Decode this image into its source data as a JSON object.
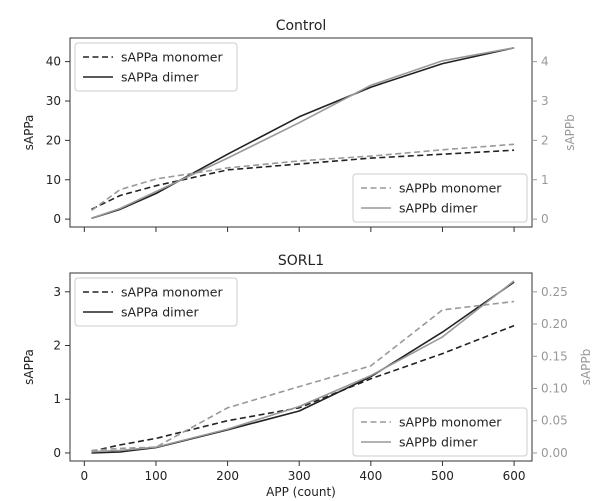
{
  "chart_data": [
    {
      "type": "line",
      "title": "Control",
      "xlabel": "",
      "x_ticks": [
        0,
        100,
        200,
        300,
        400,
        500,
        600
      ],
      "x_tick_labels_visible": false,
      "xlim": [
        -20,
        625
      ],
      "ylabel_left": "sAPPa",
      "ylim_left": [
        -2,
        46
      ],
      "yticks_left": [
        0,
        10,
        20,
        30,
        40
      ],
      "ylabel_right": "sAPPb",
      "ylim_right": [
        -0.2,
        4.6
      ],
      "yticks_right": [
        0,
        1,
        2,
        3,
        4
      ],
      "legend_left": {
        "position": "upper left",
        "series": [
          "sAPPa monomer",
          "sAPPa dimer"
        ]
      },
      "legend_right": {
        "position": "lower right",
        "series": [
          "sAPPb monomer",
          "sAPPb dimer"
        ]
      },
      "series": [
        {
          "name": "sAPPa monomer",
          "axis": "left",
          "style": "dashed",
          "color": "#222222",
          "x": [
            10,
            50,
            100,
            200,
            300,
            400,
            500,
            600
          ],
          "y": [
            2.5,
            6.0,
            8.5,
            12.5,
            14.0,
            15.5,
            16.5,
            17.5
          ]
        },
        {
          "name": "sAPPa dimer",
          "axis": "left",
          "style": "solid",
          "color": "#222222",
          "x": [
            10,
            50,
            100,
            200,
            300,
            400,
            500,
            600
          ],
          "y": [
            0.2,
            2.5,
            6.5,
            16.5,
            26.0,
            33.5,
            39.5,
            43.5
          ]
        },
        {
          "name": "sAPPb monomer",
          "axis": "right",
          "style": "dashed",
          "color": "#999999",
          "x": [
            10,
            50,
            100,
            200,
            300,
            400,
            500,
            600
          ],
          "y": [
            0.22,
            0.75,
            1.02,
            1.3,
            1.48,
            1.6,
            1.76,
            1.9
          ]
        },
        {
          "name": "sAPPb dimer",
          "axis": "right",
          "style": "solid",
          "color": "#999999",
          "x": [
            10,
            50,
            100,
            200,
            300,
            400,
            500,
            600
          ],
          "y": [
            0.02,
            0.27,
            0.7,
            1.55,
            2.45,
            3.4,
            4.02,
            4.35
          ]
        }
      ]
    },
    {
      "type": "line",
      "title": "SORL1",
      "xlabel": "APP (count)",
      "x_ticks": [
        0,
        100,
        200,
        300,
        400,
        500,
        600
      ],
      "x_tick_labels_visible": true,
      "xlim": [
        -20,
        625
      ],
      "ylabel_left": "sAPPa",
      "ylim_left": [
        -0.15,
        3.35
      ],
      "yticks_left": [
        0,
        1,
        2,
        3
      ],
      "ylabel_right": "sAPPb",
      "ylim_right": [
        -0.0125,
        0.2792
      ],
      "yticks_right": [
        0.0,
        0.05,
        0.1,
        0.15,
        0.2,
        0.25
      ],
      "ytick_labels_right": [
        "0.00",
        "0.05",
        "0.10",
        "0.15",
        "0.20",
        "0.25"
      ],
      "legend_left": {
        "position": "upper left",
        "series": [
          "sAPPa monomer",
          "sAPPa dimer"
        ]
      },
      "legend_right": {
        "position": "lower right",
        "series": [
          "sAPPb monomer",
          "sAPPb dimer"
        ]
      },
      "series": [
        {
          "name": "sAPPa monomer",
          "axis": "left",
          "style": "dashed",
          "color": "#222222",
          "x": [
            10,
            50,
            100,
            200,
            300,
            400,
            500,
            600
          ],
          "y": [
            0.03,
            0.15,
            0.27,
            0.6,
            0.84,
            1.38,
            1.85,
            2.37
          ]
        },
        {
          "name": "sAPPa dimer",
          "axis": "left",
          "style": "solid",
          "color": "#222222",
          "x": [
            10,
            50,
            100,
            200,
            300,
            400,
            500,
            600
          ],
          "y": [
            0.0,
            0.02,
            0.1,
            0.43,
            0.78,
            1.42,
            2.25,
            3.18
          ]
        },
        {
          "name": "sAPPb monomer",
          "axis": "right",
          "style": "dashed",
          "color": "#999999",
          "x": [
            10,
            50,
            100,
            200,
            300,
            400,
            500,
            600
          ],
          "y": [
            0.004,
            0.007,
            0.009,
            0.07,
            0.103,
            0.135,
            0.222,
            0.235
          ]
        },
        {
          "name": "sAPPb dimer",
          "axis": "right",
          "style": "solid",
          "color": "#999999",
          "x": [
            10,
            50,
            100,
            200,
            300,
            400,
            500,
            600
          ],
          "y": [
            0.002,
            0.004,
            0.009,
            0.037,
            0.072,
            0.12,
            0.18,
            0.267
          ]
        }
      ]
    }
  ]
}
